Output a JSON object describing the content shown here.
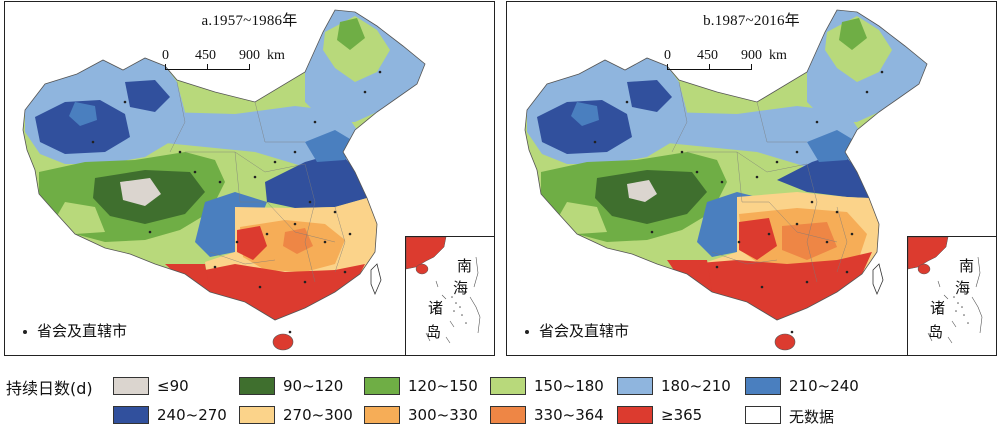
{
  "panels": [
    {
      "title": "a.1957~1986年",
      "scale": {
        "ticks": [
          "0",
          "450",
          "900"
        ],
        "unit": "km"
      },
      "capital_legend": "省会及直辖市",
      "inset_label": [
        "南",
        "海",
        "诸",
        "岛"
      ]
    },
    {
      "title": "b.1987~2016年",
      "scale": {
        "ticks": [
          "0",
          "450",
          "900"
        ],
        "unit": "km"
      },
      "capital_legend": "省会及直辖市",
      "inset_label": [
        "南",
        "海",
        "诸",
        "岛"
      ]
    }
  ],
  "legend": {
    "title": "持续日数(d)",
    "items": [
      {
        "label": "≤90",
        "color": "#dbd5cf"
      },
      {
        "label": "90~120",
        "color": "#3f6f2e"
      },
      {
        "label": "120~150",
        "color": "#6fae45"
      },
      {
        "label": "150~180",
        "color": "#b8d97b"
      },
      {
        "label": "180~210",
        "color": "#8fb5de"
      },
      {
        "label": "210~240",
        "color": "#4a7fbf"
      },
      {
        "label": "240~270",
        "color": "#31509d"
      },
      {
        "label": "270~300",
        "color": "#fbd38a"
      },
      {
        "label": "300~330",
        "color": "#f6ad57"
      },
      {
        "label": "330~364",
        "color": "#ee8645"
      },
      {
        "label": "≥365",
        "color": "#dc3b2f"
      },
      {
        "label": "无数据",
        "color": "#ffffff"
      }
    ]
  }
}
